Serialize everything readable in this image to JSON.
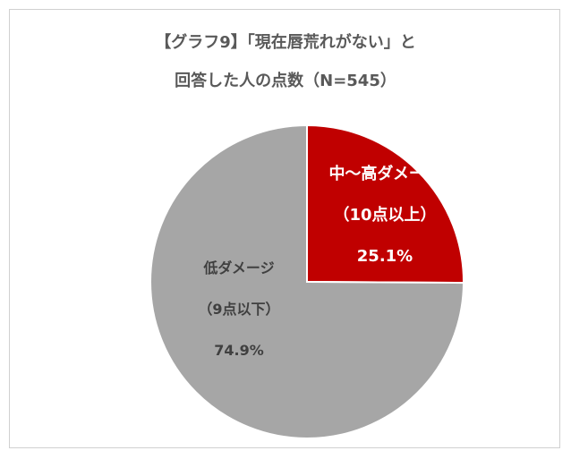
{
  "chart_data": {
    "type": "pie",
    "title": [
      "【グラフ9】「現在唇荒れがない」と",
      "回答した人の点数（N=545）"
    ],
    "series": [
      {
        "name": "中〜高ダメージ",
        "range": "（10点以上）",
        "value": 25.1,
        "value_label": "25.1%",
        "color": "#c00000",
        "text_color": "#ffffff"
      },
      {
        "name": "低ダメージ",
        "range": "（9点以下）",
        "value": 74.9,
        "value_label": "74.9%",
        "color": "#a6a6a6",
        "text_color": "#404040"
      }
    ],
    "start": "top",
    "direction": "clockwise",
    "legend": "none"
  }
}
